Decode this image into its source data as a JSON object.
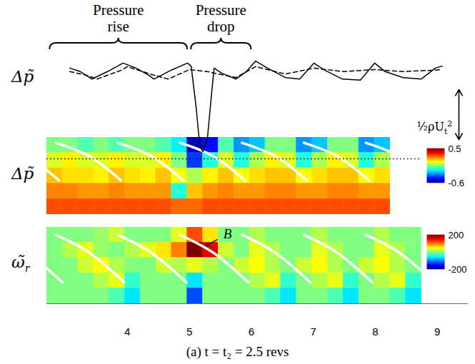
{
  "caption": "(a) t = t₂ = 2.5 revs",
  "chart_data": [
    {
      "type": "line",
      "y_label": "Δp̃",
      "annotations": [
        "Pressure rise",
        "Pressure drop"
      ],
      "scale_bar": {
        "value": 1,
        "label": {
          "base": "½ρU",
          "sub": "t",
          "sup": "2"
        }
      },
      "xlim": [
        2.7,
        9.5
      ],
      "ylim": [
        -1.3,
        0.7
      ],
      "tick_labels": false,
      "series": [
        {
          "color": "#000000",
          "line_style": "solid",
          "x": [
            3.07,
            3.24,
            3.43,
            3.68,
            3.93,
            4.14,
            4.34,
            4.43,
            4.71,
            4.97,
            5.03,
            5.11,
            5.17,
            5.22,
            5.29,
            5.36,
            5.4,
            5.52,
            5.75,
            5.92,
            6.07,
            6.26,
            6.55,
            6.78,
            7.01,
            7.18,
            7.47,
            7.76,
            7.99,
            8.16,
            8.45,
            8.74,
            8.97,
            9.08
          ],
          "values": [
            0.43,
            0.36,
            0.21,
            0.36,
            0.53,
            0.43,
            0.29,
            0.21,
            0.39,
            0.53,
            0.47,
            -0.36,
            -1.14,
            -1.24,
            -1,
            -0.07,
            0.43,
            0.33,
            0.21,
            0.36,
            0.57,
            0.43,
            0.24,
            0.21,
            0.53,
            0.39,
            0.21,
            0.19,
            0.53,
            0.36,
            0.24,
            0.21,
            0.43,
            0.47
          ]
        },
        {
          "color": "#000000",
          "line_style": "dashed",
          "x": [
            3.07,
            3.33,
            3.51,
            3.91,
            4,
            4.37,
            4.66,
            5,
            5.29,
            5.75,
            6.07,
            6.55,
            7.01,
            7.47,
            7.99,
            8.45,
            8.97,
            9.08
          ],
          "values": [
            0.36,
            0.29,
            0.21,
            0.39,
            0.46,
            0.31,
            0.21,
            0.4,
            0.36,
            0.24,
            0.46,
            0.31,
            0.43,
            0.36,
            0.4,
            0.36,
            0.39,
            0.4
          ]
        }
      ]
    },
    {
      "type": "heatmap",
      "y_label": "Δp̃",
      "xlim": [
        2.7,
        9.5
      ],
      "tick_labels": false,
      "colorbar": {
        "range": [
          -0.6,
          0.5
        ],
        "ticks": [
          0.5,
          -0.6
        ]
      },
      "cells": [
        [
          -0.05,
          -0.05,
          -0.1,
          -0.05,
          -0.1,
          -0.05,
          -0.05,
          -0.1,
          -0.2,
          -0.55,
          -0.45,
          -0.1,
          -0.3,
          -0.25,
          -0.05,
          -0.05,
          -0.3,
          -0.25,
          -0.05,
          -0.05,
          -0.3,
          -0.25,
          null,
          null,
          null,
          null,
          null
        ],
        [
          0.05,
          0.1,
          0.05,
          0.05,
          0.1,
          0.05,
          0.05,
          0.1,
          -0.05,
          -0.4,
          -0.15,
          0.05,
          -0.15,
          0,
          0.1,
          0.05,
          -0.15,
          0,
          0.1,
          0.05,
          -0.15,
          0,
          null,
          null,
          null,
          null,
          null
        ],
        [
          0.15,
          0.12,
          0.12,
          0.1,
          0.15,
          0.12,
          0.1,
          0.15,
          0.08,
          0,
          0.1,
          0.15,
          0.08,
          0.12,
          0.15,
          0.15,
          0.08,
          0.12,
          0.15,
          0.15,
          0.08,
          0.12,
          null,
          null,
          null,
          null,
          null
        ],
        [
          0.22,
          0.22,
          0.2,
          0.2,
          0.22,
          0.2,
          0.2,
          0.2,
          -0.15,
          0.15,
          0.2,
          0.22,
          0.2,
          0.2,
          0.22,
          0.22,
          0.2,
          0.2,
          0.22,
          0.22,
          0.2,
          0.2,
          null,
          null,
          null,
          null,
          null
        ],
        [
          0.28,
          0.28,
          0.28,
          0.28,
          0.28,
          0.28,
          0.28,
          0.28,
          0.25,
          0.25,
          0.28,
          0.28,
          0.28,
          0.28,
          0.28,
          0.28,
          0.28,
          0.28,
          0.28,
          0.28,
          0.28,
          0.28,
          null,
          null,
          null,
          null,
          null
        ]
      ]
    },
    {
      "type": "heatmap",
      "y_label": {
        "base": "ω̃",
        "sub": "r"
      },
      "xlim": [
        2.7,
        9.5
      ],
      "xticks": [
        4,
        5,
        6,
        7,
        8,
        9
      ],
      "tick_labels": "x",
      "annotations": [
        "B"
      ],
      "colorbar": {
        "range": [
          -200,
          200
        ],
        "ticks": [
          200,
          -200
        ]
      },
      "cells": [
        [
          0,
          0,
          0,
          10,
          30,
          0,
          0,
          0,
          40,
          120,
          60,
          0,
          0,
          20,
          0,
          0,
          0,
          20,
          0,
          0,
          0,
          20,
          0,
          0,
          null,
          null,
          null
        ],
        [
          0,
          20,
          40,
          10,
          0,
          20,
          40,
          60,
          100,
          200,
          160,
          30,
          0,
          40,
          20,
          0,
          0,
          40,
          20,
          0,
          0,
          40,
          20,
          0,
          null,
          null,
          null
        ],
        [
          0,
          0,
          30,
          50,
          20,
          0,
          0,
          30,
          20,
          40,
          20,
          0,
          30,
          50,
          20,
          0,
          30,
          50,
          20,
          0,
          30,
          50,
          20,
          0,
          null,
          null,
          null
        ],
        [
          0,
          0,
          0,
          20,
          40,
          -30,
          0,
          0,
          0,
          -60,
          0,
          0,
          0,
          20,
          40,
          -30,
          0,
          20,
          40,
          -30,
          0,
          20,
          40,
          -30,
          null,
          null,
          null
        ],
        [
          0,
          0,
          0,
          0,
          -20,
          -60,
          0,
          0,
          0,
          -120,
          0,
          0,
          0,
          0,
          -20,
          -60,
          0,
          0,
          -20,
          -60,
          0,
          0,
          -20,
          -60,
          null,
          null,
          null
        ]
      ]
    }
  ]
}
